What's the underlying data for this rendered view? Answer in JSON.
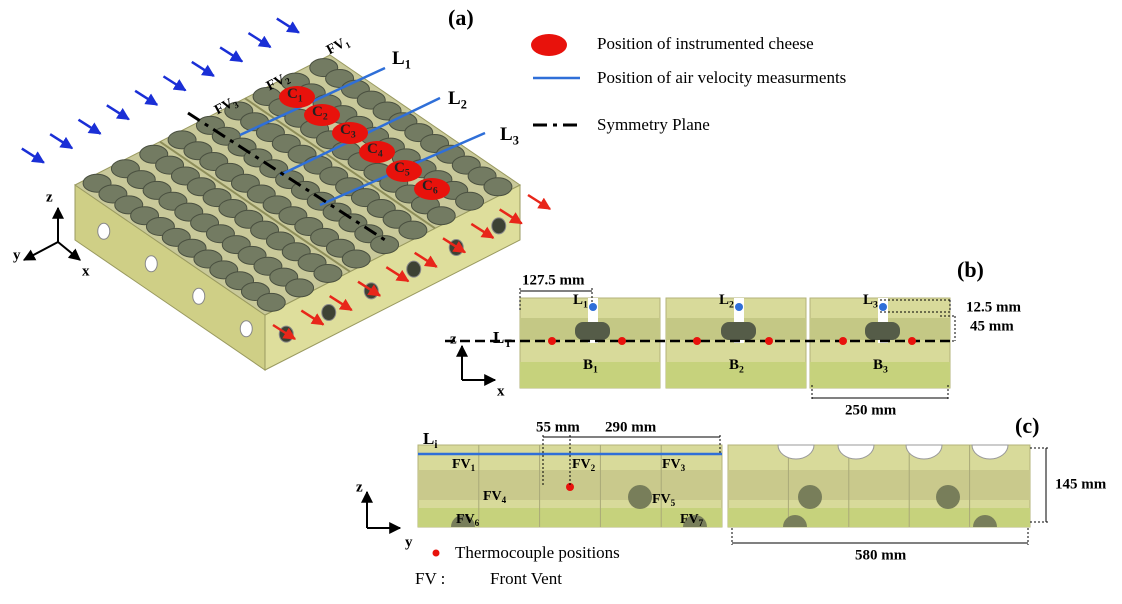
{
  "panel_a": {
    "label": "(a)",
    "vents": [
      {
        "base": "FV",
        "sub": "1"
      },
      {
        "base": "FV",
        "sub": "2"
      },
      {
        "base": "FV",
        "sub": "3"
      }
    ],
    "lines": [
      {
        "base": "L",
        "sub": "1"
      },
      {
        "base": "L",
        "sub": "2"
      },
      {
        "base": "L",
        "sub": "3"
      }
    ],
    "cheeses": [
      {
        "base": "C",
        "sub": "1"
      },
      {
        "base": "C",
        "sub": "2"
      },
      {
        "base": "C",
        "sub": "3"
      },
      {
        "base": "C",
        "sub": "4"
      },
      {
        "base": "C",
        "sub": "5"
      },
      {
        "base": "C",
        "sub": "6"
      }
    ],
    "axes": {
      "z": "z",
      "y": "y",
      "x": "x"
    }
  },
  "legend": [
    "Position of instrumented cheese",
    "Position of air velocity measurments",
    "Symmetry Plane"
  ],
  "panel_b": {
    "label": "(b)",
    "dims": [
      "127.5 mm",
      "12.5 mm",
      "45 mm",
      "250 mm"
    ],
    "lines": [
      {
        "base": "L",
        "sub": "1"
      },
      {
        "base": "L",
        "sub": "2"
      },
      {
        "base": "L",
        "sub": "3"
      }
    ],
    "plane": {
      "base": "L",
      "sub": "T"
    },
    "boxes": [
      {
        "base": "B",
        "sub": "1"
      },
      {
        "base": "B",
        "sub": "2"
      },
      {
        "base": "B",
        "sub": "3"
      }
    ],
    "axes": {
      "z": "z",
      "x": "x"
    }
  },
  "panel_c": {
    "label": "(c)",
    "dims": [
      "55 mm",
      "290 mm",
      "145 mm",
      "580 mm"
    ],
    "line": {
      "base": "L",
      "sub": "i"
    },
    "vents": [
      {
        "base": "FV",
        "sub": "1"
      },
      {
        "base": "FV",
        "sub": "2"
      },
      {
        "base": "FV",
        "sub": "3"
      },
      {
        "base": "FV",
        "sub": "4"
      },
      {
        "base": "FV",
        "sub": "5"
      },
      {
        "base": "FV",
        "sub": "6"
      },
      {
        "base": "FV",
        "sub": "7"
      }
    ],
    "axes": {
      "z": "z",
      "y": "y"
    }
  },
  "notes": {
    "thermocouple": "Thermocouple positions",
    "fv_key": "FV :",
    "fv_value": "Front Vent"
  }
}
